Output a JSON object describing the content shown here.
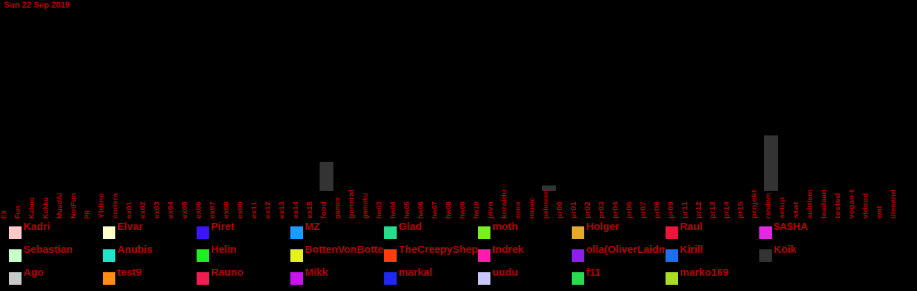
{
  "header": {
    "date": "Sun 22 Sep 2019"
  },
  "colors": {
    "text": "#c00000",
    "bar": "#333333",
    "background": "#000000"
  },
  "chart_data": {
    "type": "bar",
    "title": "",
    "xlabel": "",
    "ylabel": "",
    "grid": false,
    "categories": [
      "EX",
      "Fun",
      "Kalmo",
      "Kokku",
      "MuudAi",
      "NotFun",
      "PR",
      "Yldine",
      "codera",
      "ex01",
      "ex02",
      "ex03",
      "ex04",
      "ex05",
      "ex06",
      "ex07",
      "ex08",
      "ex09",
      "ex11",
      "ex12",
      "ex13",
      "ex14",
      "ex15",
      "food",
      "games",
      "general",
      "gomoku",
      "hw03",
      "hw04",
      "hw05",
      "hw06",
      "hw07",
      "hw08",
      "hw09",
      "hw10",
      "java",
      "koraldu",
      "meme",
      "music",
      "pelmeen",
      "pr00",
      "pr01",
      "pr02",
      "pr03",
      "pr04",
      "pr06",
      "pr07",
      "pr08",
      "pr09",
      "pr11",
      "pr12",
      "pr13",
      "pr14",
      "pr15",
      "projekt",
      "random",
      "setup",
      "stat",
      "suhtlem",
      "teadaan",
      "tested",
      "vegan-t",
      "videod",
      "wat",
      "üleeand"
    ],
    "values": [
      0,
      0,
      0,
      0,
      0,
      0,
      0,
      0,
      0,
      0,
      0,
      0,
      0,
      0,
      0,
      0,
      0,
      0,
      0,
      0,
      0,
      0,
      0,
      21,
      0,
      0,
      0,
      0,
      0,
      0,
      0,
      0,
      0,
      0,
      0,
      0,
      0,
      0,
      0,
      4,
      0,
      0,
      0,
      0,
      0,
      0,
      0,
      0,
      0,
      0,
      0,
      0,
      0,
      0,
      0,
      40,
      0,
      0,
      0,
      0,
      0,
      0,
      0,
      0,
      0
    ],
    "ylim": [
      0,
      40
    ],
    "legend_position": "bottom",
    "legend": [
      {
        "name": "Kadri",
        "color": "#ffc8c8"
      },
      {
        "name": "Elvar",
        "color": "#ffffc8"
      },
      {
        "name": "Piret",
        "color": "#3c14ff"
      },
      {
        "name": "MZ",
        "color": "#1e9bff"
      },
      {
        "name": "Glad",
        "color": "#28dc8c"
      },
      {
        "name": "moth",
        "color": "#78f01e"
      },
      {
        "name": "Holger",
        "color": "#e6aa28"
      },
      {
        "name": "Raul",
        "color": "#f0143c"
      },
      {
        "name": "$A$HA",
        "color": "#e628e6"
      },
      {
        "name": "Sebastian",
        "color": "#c8ffc8"
      },
      {
        "name": "Anubis",
        "color": "#1ee6c8"
      },
      {
        "name": "Helin",
        "color": "#1ef01e"
      },
      {
        "name": "BottenVonBottenson",
        "color": "#e6f01e"
      },
      {
        "name": "TheCreepyShepherd",
        "color": "#ff3c0a"
      },
      {
        "name": "Indrek",
        "color": "#ff1eaa"
      },
      {
        "name": "olla(OliverLaidmets)",
        "color": "#8c1ef0"
      },
      {
        "name": "Kirill",
        "color": "#1e6ef0"
      },
      {
        "name": "Köik",
        "color": "#333333"
      },
      {
        "name": "Ago",
        "color": "#c8c8c8"
      },
      {
        "name": "test9",
        "color": "#ff8c14"
      },
      {
        "name": "Rauno",
        "color": "#f01e50"
      },
      {
        "name": "Mikk",
        "color": "#c814f0"
      },
      {
        "name": "markal",
        "color": "#1e28f0"
      },
      {
        "name": "uudu",
        "color": "#c8c8ff"
      },
      {
        "name": "f11",
        "color": "#28dc50"
      },
      {
        "name": "marko169",
        "color": "#aadc28"
      }
    ]
  }
}
